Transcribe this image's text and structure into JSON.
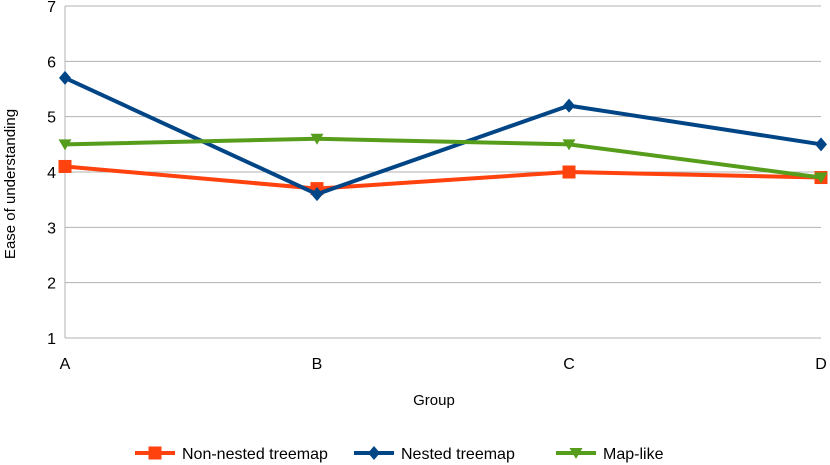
{
  "chart_data": {
    "type": "line",
    "title": "",
    "xlabel": "Group",
    "ylabel": "Ease of understanding",
    "categories": [
      "A",
      "B",
      "C",
      "D"
    ],
    "ylim": [
      1,
      7
    ],
    "yticks": [
      "1",
      "2",
      "3",
      "4",
      "5",
      "6",
      "7"
    ],
    "grid": true,
    "legend_position": "bottom",
    "series": [
      {
        "name": "Non-nested treemap",
        "color": "#ff420e",
        "marker": "square-icon",
        "values": [
          4.1,
          3.7,
          4.0,
          3.9
        ]
      },
      {
        "name": "Nested treemap",
        "color": "#004586",
        "marker": "diamond-icon",
        "values": [
          5.7,
          3.6,
          5.2,
          4.5
        ]
      },
      {
        "name": "Map-like",
        "color": "#579d1c",
        "marker": "triangle-down-icon",
        "values": [
          4.5,
          4.6,
          4.5,
          3.9
        ]
      }
    ]
  }
}
